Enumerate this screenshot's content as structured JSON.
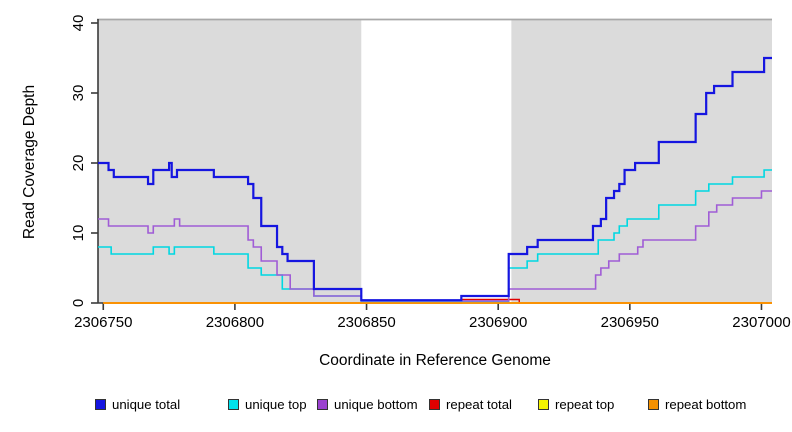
{
  "chart_data": {
    "type": "line",
    "subtype": "step",
    "title": "",
    "xlabel": "Coordinate in Reference Genome",
    "ylabel": "Read Coverage Depth",
    "xlim": [
      2306748,
      2307004
    ],
    "ylim": [
      0,
      40
    ],
    "x_ticks": [
      2306750,
      2306800,
      2306850,
      2306900,
      2306950,
      2307000
    ],
    "y_ticks": [
      0,
      10,
      20,
      30,
      40
    ],
    "grid": false,
    "legend_position": "bottom",
    "colors": {
      "axis": "#3a3a3a",
      "shaded_region_fill": "#dbdbdb",
      "shaded_region_border": "#a8a8a8",
      "background": "#ffffff"
    },
    "shaded_regions": [
      {
        "x0": 2306748,
        "x1": 2306848,
        "note": "left gray block"
      },
      {
        "x0": 2306905,
        "x1": 2307004,
        "note": "right gray block"
      }
    ],
    "series": [
      {
        "name": "repeat total",
        "color": "#e00000",
        "width": 1.4,
        "points": [
          [
            2306750,
            0
          ],
          [
            2306886,
            0.5
          ],
          [
            2306908,
            0
          ]
        ]
      },
      {
        "name": "repeat top",
        "color": "#f5f500",
        "width": 1.4,
        "points": [
          [
            2306750,
            0
          ]
        ]
      },
      {
        "name": "unique top",
        "color": "#00d8e2",
        "width": 1.6,
        "points": [
          [
            2306748,
            8
          ],
          [
            2306753,
            7
          ],
          [
            2306769,
            8
          ],
          [
            2306775,
            7
          ],
          [
            2306777,
            8
          ],
          [
            2306792,
            7
          ],
          [
            2306805,
            5
          ],
          [
            2306810,
            4
          ],
          [
            2306818,
            2
          ],
          [
            2306830,
            1
          ],
          [
            2306848,
            0.2
          ],
          [
            2306904,
            5
          ],
          [
            2306911,
            6
          ],
          [
            2306915,
            7
          ],
          [
            2306938,
            9
          ],
          [
            2306944,
            10
          ],
          [
            2306946,
            11
          ],
          [
            2306949,
            12
          ],
          [
            2306961,
            14
          ],
          [
            2306975,
            16
          ],
          [
            2306980,
            17
          ],
          [
            2306989,
            18
          ],
          [
            2307001,
            19
          ]
        ]
      },
      {
        "name": "unique bottom",
        "color": "#a05cd6",
        "width": 1.6,
        "points": [
          [
            2306748,
            12
          ],
          [
            2306752,
            11
          ],
          [
            2306767,
            10
          ],
          [
            2306769,
            11
          ],
          [
            2306777,
            12
          ],
          [
            2306779,
            11
          ],
          [
            2306805,
            9
          ],
          [
            2306807,
            8
          ],
          [
            2306810,
            6
          ],
          [
            2306816,
            4
          ],
          [
            2306821,
            2
          ],
          [
            2306830,
            1
          ],
          [
            2306848,
            0.3
          ],
          [
            2306904,
            2
          ],
          [
            2306937,
            4
          ],
          [
            2306939,
            5
          ],
          [
            2306942,
            6
          ],
          [
            2306946,
            7
          ],
          [
            2306953,
            8
          ],
          [
            2306955,
            9
          ],
          [
            2306975,
            11
          ],
          [
            2306980,
            13
          ],
          [
            2306983,
            14
          ],
          [
            2306989,
            15
          ],
          [
            2307000,
            16
          ]
        ]
      },
      {
        "name": "unique total",
        "color": "#1515e0",
        "width": 2.2,
        "points": [
          [
            2306748,
            20
          ],
          [
            2306752,
            19
          ],
          [
            2306754,
            18
          ],
          [
            2306767,
            17
          ],
          [
            2306769,
            19
          ],
          [
            2306775,
            20
          ],
          [
            2306776,
            18
          ],
          [
            2306778,
            19
          ],
          [
            2306792,
            18
          ],
          [
            2306805,
            17
          ],
          [
            2306807,
            15
          ],
          [
            2306810,
            11
          ],
          [
            2306816,
            8
          ],
          [
            2306818,
            7
          ],
          [
            2306820,
            6
          ],
          [
            2306830,
            2
          ],
          [
            2306848,
            0.4
          ],
          [
            2306886,
            1
          ],
          [
            2306904,
            7
          ],
          [
            2306911,
            8
          ],
          [
            2306915,
            9
          ],
          [
            2306936,
            11
          ],
          [
            2306939,
            12
          ],
          [
            2306941,
            15
          ],
          [
            2306944,
            16
          ],
          [
            2306946,
            17
          ],
          [
            2306948,
            19
          ],
          [
            2306952,
            20
          ],
          [
            2306961,
            23
          ],
          [
            2306975,
            27
          ],
          [
            2306979,
            30
          ],
          [
            2306982,
            31
          ],
          [
            2306989,
            33
          ],
          [
            2307001,
            35
          ]
        ]
      },
      {
        "name": "repeat bottom",
        "color": "#ff9000",
        "width": 1.8,
        "points": [
          [
            2306750,
            0
          ]
        ]
      }
    ],
    "legend": [
      {
        "label": "unique total",
        "color": "#1515e0"
      },
      {
        "label": "unique top",
        "color": "#00e2ec"
      },
      {
        "label": "unique bottom",
        "color": "#9b42d0"
      },
      {
        "label": "repeat total",
        "color": "#e00000"
      },
      {
        "label": "repeat top",
        "color": "#f5f500"
      },
      {
        "label": "repeat bottom",
        "color": "#f59100"
      }
    ]
  }
}
